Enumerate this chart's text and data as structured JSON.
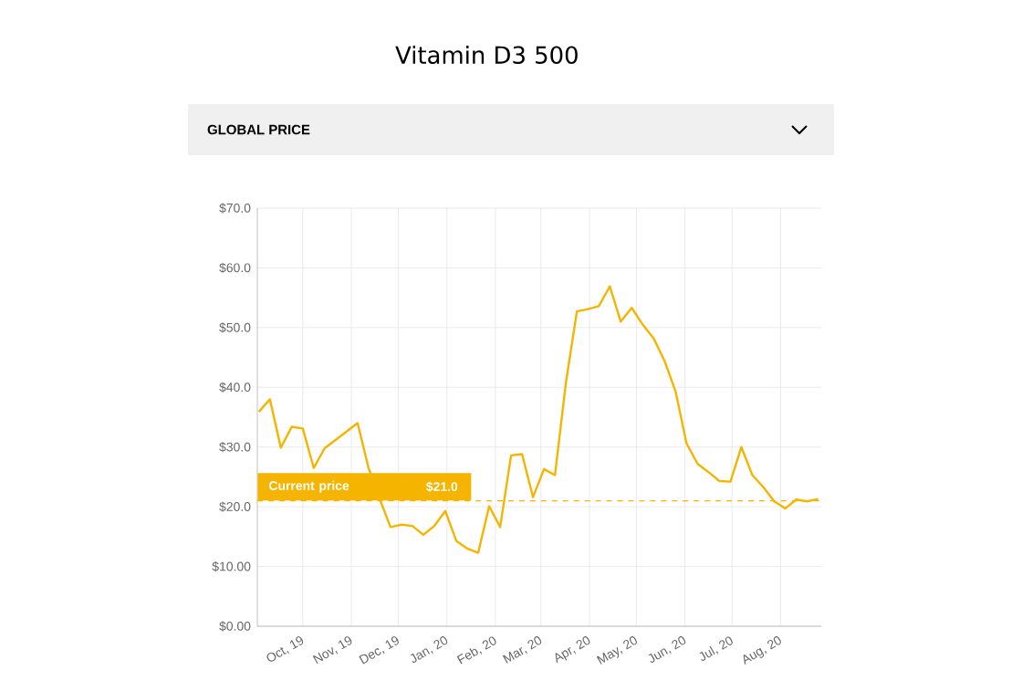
{
  "chart_data": {
    "type": "line",
    "title": "Vitamin D3 500",
    "subtitle": "GLOBAL PRICE",
    "x": [
      "2019-09-03",
      "2019-09-10",
      "2019-09-17",
      "2019-09-24",
      "2019-10-01",
      "2019-10-08",
      "2019-10-15",
      "2019-10-22",
      "2019-10-29",
      "2019-11-05",
      "2019-11-12",
      "2019-11-19",
      "2019-11-26",
      "2019-12-03",
      "2019-12-10",
      "2019-12-17",
      "2019-12-24",
      "2019-12-31",
      "2020-01-07",
      "2020-01-14",
      "2020-01-21",
      "2020-01-28",
      "2020-02-04",
      "2020-02-11",
      "2020-02-18",
      "2020-02-25",
      "2020-03-03",
      "2020-03-10",
      "2020-03-17",
      "2020-03-24",
      "2020-03-31",
      "2020-04-07",
      "2020-04-14",
      "2020-04-21",
      "2020-04-28",
      "2020-05-05",
      "2020-05-12",
      "2020-05-19",
      "2020-05-26",
      "2020-06-02",
      "2020-06-09",
      "2020-06-16",
      "2020-06-23",
      "2020-06-30",
      "2020-07-07",
      "2020-07-14",
      "2020-07-21",
      "2020-07-28",
      "2020-08-04",
      "2020-08-11",
      "2020-08-18",
      "2020-08-25"
    ],
    "values": [
      35.9,
      38.0,
      29.9,
      33.4,
      33.1,
      26.5,
      29.8,
      null,
      null,
      34.0,
      26.5,
      21.4,
      16.6,
      17.0,
      16.8,
      15.3,
      16.8,
      19.3,
      14.3,
      13.0,
      12.3,
      20.1,
      16.6,
      28.6,
      28.8,
      21.6,
      26.3,
      25.3,
      40.8,
      52.7,
      53.1,
      53.6,
      56.9,
      51.0,
      53.3,
      50.5,
      48.2,
      44.4,
      39.3,
      30.6,
      27.2,
      25.8,
      24.3,
      24.2,
      30.0,
      25.3,
      23.3,
      20.9,
      19.7,
      21.2,
      20.9,
      21.3
    ],
    "color": "#f5b400",
    "xlim": [
      "2019-09-02",
      "2020-08-27"
    ],
    "ylim": [
      0,
      70
    ],
    "xticks": [
      {
        "value": "2019-10-01",
        "label": "Oct, 19"
      },
      {
        "value": "2019-11-01",
        "label": "Nov, 19"
      },
      {
        "value": "2019-12-01",
        "label": "Dec, 19"
      },
      {
        "value": "2020-01-01",
        "label": "Jan, 20"
      },
      {
        "value": "2020-02-01",
        "label": "Feb, 20"
      },
      {
        "value": "2020-03-01",
        "label": "Mar, 20"
      },
      {
        "value": "2020-04-01",
        "label": "Apr, 20"
      },
      {
        "value": "2020-05-01",
        "label": "May, 20"
      },
      {
        "value": "2020-06-01",
        "label": "Jun, 20"
      },
      {
        "value": "2020-07-01",
        "label": "Jul, 20"
      },
      {
        "value": "2020-08-01",
        "label": "Aug, 20"
      }
    ],
    "yticks": [
      {
        "value": 0,
        "label": "$0.00"
      },
      {
        "value": 10,
        "label": "$10.00"
      },
      {
        "value": 20,
        "label": "$20.0"
      },
      {
        "value": 30,
        "label": "$30.0"
      },
      {
        "value": 40,
        "label": "$40.0"
      },
      {
        "value": 50,
        "label": "$50.0"
      },
      {
        "value": 60,
        "label": "$60.0"
      },
      {
        "value": 70,
        "label": "$70.0"
      }
    ],
    "grid": true,
    "ref_lines": [
      {
        "axis": "y",
        "value": 21,
        "label": "Current price",
        "color": "#f5b400",
        "line_style": "dashed"
      }
    ],
    "annotations": [
      "$21.0"
    ]
  }
}
